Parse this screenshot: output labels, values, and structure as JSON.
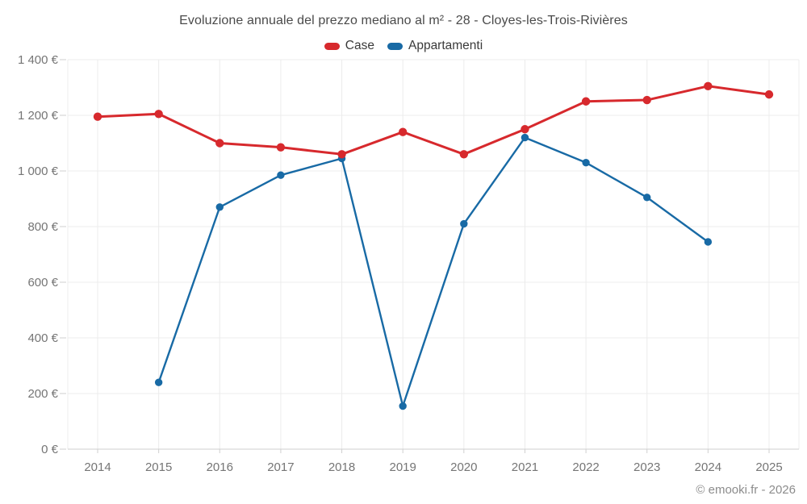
{
  "chart_data": {
    "type": "line",
    "title": "Evoluzione annuale del prezzo mediano al m² - 28 - Cloyes-les-Trois-Rivières",
    "x": [
      2014,
      2015,
      2016,
      2017,
      2018,
      2019,
      2020,
      2021,
      2022,
      2023,
      2024,
      2025
    ],
    "xtick_labels": [
      "2014",
      "2015",
      "2016",
      "2017",
      "2018",
      "2019",
      "2020",
      "2021",
      "2022",
      "2023",
      "2024",
      "2025"
    ],
    "series": [
      {
        "name": "Case",
        "color": "#d7292d",
        "values": [
          1195,
          1205,
          1100,
          1085,
          1060,
          1140,
          1060,
          1150,
          1250,
          1255,
          1305,
          1275
        ]
      },
      {
        "name": "Appartamenti",
        "color": "#186aa5",
        "values": [
          null,
          240,
          870,
          985,
          1045,
          155,
          810,
          1120,
          1030,
          905,
          745,
          null
        ]
      }
    ],
    "ylim": [
      0,
      1400
    ],
    "yticks": [
      0,
      200,
      400,
      600,
      800,
      1000,
      1200,
      1400
    ],
    "ytick_labels": [
      "0 €",
      "200 €",
      "400 €",
      "600 €",
      "800 €",
      "1 000 €",
      "1 200 €",
      "1 400 €"
    ],
    "grid": true,
    "legend_position": "top",
    "currency": "€"
  },
  "footer": {
    "text": "© emooki.fr - 2026"
  },
  "colors": {
    "grid": "#ececec",
    "axis": "#cfcfcf",
    "axis_label": "#757575",
    "title_text": "#4a4a4a",
    "legend_text": "#3a3a3a",
    "footer_text": "#8c8c8c",
    "background": "#ffffff"
  }
}
